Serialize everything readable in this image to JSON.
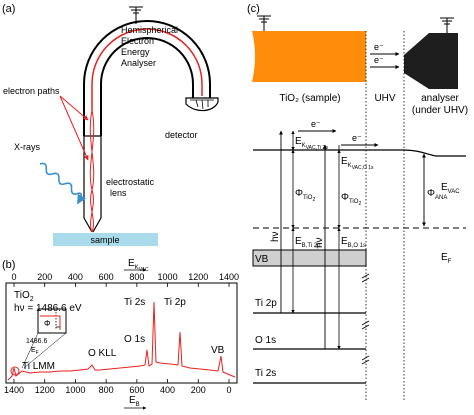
{
  "panel_a": {
    "label": "(a)",
    "hea_words": [
      "Hemispherical",
      "Electron",
      "Energy",
      "Analyser"
    ],
    "electron_paths": "electron paths",
    "xrays": "X-rays",
    "electrostatic": "electrostatic",
    "lens": "lens",
    "detector": "detector",
    "sample": "sample"
  },
  "panel_b": {
    "label": "(b)",
    "top_axis_label_main": "E",
    "top_axis_label_sub": "K",
    "top_axis_label_subsub": "VAC",
    "bottom_axis_label_main": "E",
    "bottom_axis_label_sub": "B",
    "top_ticks": [
      "0",
      "200",
      "400",
      "600",
      "800",
      "1000",
      "1200",
      "1400"
    ],
    "bottom_ticks": [
      "1400",
      "1200",
      "1000",
      "800",
      "600",
      "400",
      "200",
      "0"
    ],
    "material_main": "TiO",
    "material_sub": "2",
    "photon_energy": "hν = 1486.6 eV",
    "peaks": [
      "Ti 2s",
      "Ti 2p",
      "O 1s",
      "O KLL",
      "Ti LMM",
      "VB"
    ],
    "inset_phi": "Φ",
    "inset_value": "1486.6",
    "inset_ef_main": "E",
    "inset_ef_sub": "F",
    "colors": {
      "spectrum": "#e8201e",
      "axis": "#000000"
    }
  },
  "panel_c": {
    "label": "(c)",
    "tio2_sample": "TiO₂ (sample)",
    "uhv": "UHV",
    "analyser_1": "analyser",
    "analyser_2": "(under UHV)",
    "electron": "e⁻",
    "vb": "VB",
    "levels": [
      "Ti 2p",
      "O 1s",
      "Ti 2s"
    ],
    "ek_ti2p_main": "E",
    "ek_ti2p_sub": "K",
    "ek_ti2p_subsub": "VAC,Ti 2p",
    "ek_o1s_main": "E",
    "ek_o1s_sub": "K",
    "ek_o1s_subsub": "VAC,O 1s",
    "phi_tio2_main": "Φ",
    "phi_tio2_sub": "TiO",
    "phi_tio2_subsub": "2",
    "hv": "hν",
    "eb_ti2p_main": "E",
    "eb_ti2p_sub": "B,Ti 2p",
    "eb_o1s_main": "E",
    "eb_o1s_sub": "B,O 1s",
    "evac_main": "E",
    "evac_sub": "VAC",
    "phi_ana_main": "Φ",
    "phi_ana_sub": "ANA",
    "ef_main": "E",
    "ef_sub": "F",
    "colors": {
      "sample": "#ff8c0a",
      "analyser": "#1e1e1e",
      "vb_band": "#cfcfcf"
    }
  }
}
